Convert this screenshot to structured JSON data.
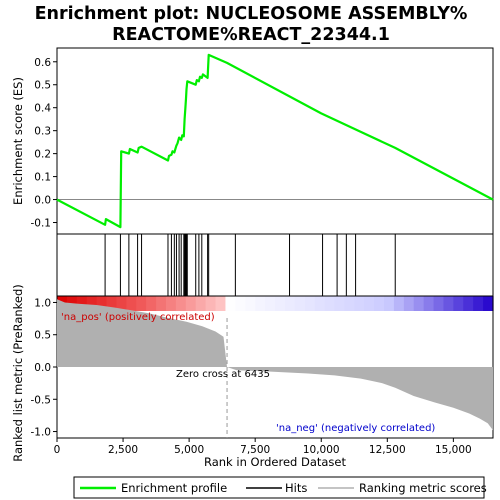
{
  "chart_data": {
    "type": "line",
    "title_line1": "Enrichment plot: NUCLEOSOME ASSEMBLY%",
    "title_line2": "REACTOME%REACT_22344.1",
    "xlabel": "Rank in Ordered Dataset",
    "es_ylabel": "Enrichment score (ES)",
    "metric_ylabel": "Ranked list metric (PreRanked)",
    "xlim": [
      0,
      16500
    ],
    "es_ylim": [
      -0.15,
      0.66
    ],
    "metric_ylim": [
      -1.1,
      1.1
    ],
    "x_ticks": [
      0,
      2500,
      5000,
      7500,
      10000,
      12500,
      15000
    ],
    "x_tick_labels": [
      "0",
      "2,500",
      "5,000",
      "7,500",
      "10,000",
      "12,500",
      "15,000"
    ],
    "es_ticks": [
      -0.1,
      0.0,
      0.1,
      0.2,
      0.3,
      0.4,
      0.5,
      0.6
    ],
    "es_tick_labels": [
      "-0.1",
      "0.0",
      "0.1",
      "0.2",
      "0.3",
      "0.4",
      "0.5",
      "0.6"
    ],
    "metric_ticks": [
      1.0,
      0.5,
      0.0,
      -0.5,
      -1.0
    ],
    "metric_tick_labels": [
      "1.0",
      "0.5",
      "0.0",
      "-0.5",
      "-1.0"
    ],
    "enrichment_profile": {
      "x": [
        0,
        1820,
        1850,
        2400,
        2430,
        2720,
        2760,
        3050,
        3090,
        3200,
        4200,
        4240,
        4330,
        4370,
        4440,
        4520,
        4560,
        4620,
        4700,
        4740,
        4800,
        4830,
        4860,
        4880,
        4900,
        4930,
        5250,
        5290,
        5370,
        5410,
        5480,
        5520,
        5700,
        5740,
        6435,
        10000,
        12800,
        16500
      ],
      "y": [
        0.0,
        -0.11,
        -0.085,
        -0.12,
        0.21,
        0.2,
        0.22,
        0.205,
        0.225,
        0.23,
        0.17,
        0.19,
        0.195,
        0.21,
        0.205,
        0.235,
        0.245,
        0.27,
        0.26,
        0.28,
        0.275,
        0.35,
        0.4,
        0.44,
        0.48,
        0.515,
        0.5,
        0.52,
        0.515,
        0.535,
        0.53,
        0.545,
        0.53,
        0.63,
        0.595,
        0.375,
        0.225,
        0.0
      ]
    },
    "hits": [
      1820,
      2400,
      2720,
      3050,
      3200,
      4200,
      4330,
      4440,
      4520,
      4620,
      4700,
      4800,
      4830,
      4860,
      4880,
      4900,
      4930,
      5250,
      5370,
      5480,
      5700,
      5740,
      6750,
      8800,
      10050,
      10600,
      10950,
      11300,
      12800
    ],
    "metric_curve": {
      "x": [
        0,
        300,
        800,
        1500,
        2200,
        2800,
        3500,
        4200,
        4900,
        5500,
        6000,
        6300,
        6435,
        6800,
        8000,
        9500,
        10500,
        11500,
        12300,
        12800,
        13500,
        14300,
        15000,
        15600,
        16000,
        16300,
        16500
      ],
      "y": [
        1.05,
        1.0,
        0.98,
        0.96,
        0.92,
        0.88,
        0.83,
        0.76,
        0.7,
        0.63,
        0.55,
        0.47,
        0.0,
        -0.05,
        -0.07,
        -0.1,
        -0.13,
        -0.18,
        -0.25,
        -0.32,
        -0.45,
        -0.55,
        -0.63,
        -0.72,
        -0.8,
        -0.87,
        -0.98
      ]
    },
    "zero_cross_label": "Zero cross at 6435",
    "zero_cross_x": 6435,
    "pos_label": "'na_pos' (positively correlated)",
    "neg_label": "'na_neg' (negatively correlated)",
    "legend": {
      "profile": "Enrichment profile",
      "hits": "Hits",
      "metric": "Ranking metric scores"
    },
    "colors": {
      "profile": "#00ee00",
      "metric": "#b0b0b0",
      "pos_label": "#cc0000",
      "neg_label": "#0000cc",
      "band_red_dark": "#dd0000",
      "band_red_light": "#ffcccc",
      "band_blue_light": "#ccccff",
      "band_blue_dark": "#2200cc"
    }
  }
}
